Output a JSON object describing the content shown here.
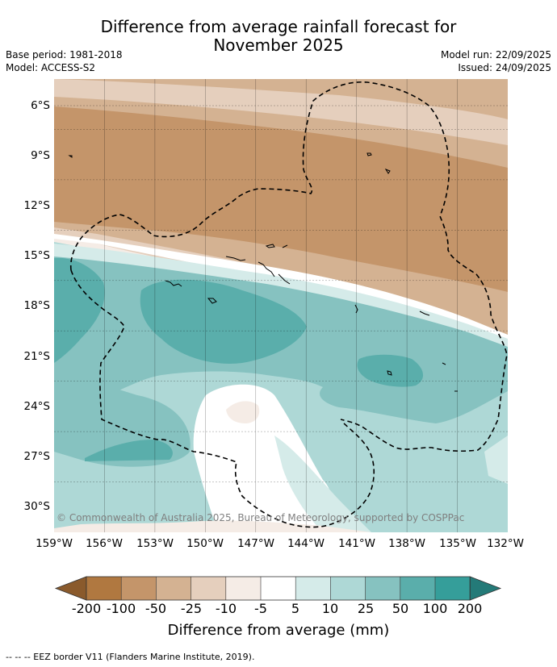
{
  "header": {
    "title_line1": "Difference from average rainfall forecast for",
    "title_line2": "November 2025",
    "base_period": "Base period: 1981-2018",
    "model": "Model: ACCESS-S2",
    "model_run": "Model run: 22/09/2025",
    "issued": "Issued: 24/09/2025"
  },
  "map": {
    "copyright": "© Commonwealth of Australia 2025, Bureau of Meteorology, supported by COSPPac",
    "colors": {
      "c_200": "#8a5a2c",
      "c_100": "#b07840",
      "c_50": "#c4956a",
      "c_25": "#d4b292",
      "c_10": "#e5cfbd",
      "c_5": "#f5ece6",
      "c_0": "#ffffff",
      "p_5": "#d5ebe9",
      "p_10": "#aed8d6",
      "p_25": "#86c2c0",
      "p_50": "#5aaeab",
      "p_100": "#359e9a",
      "p_200": "#247a78"
    }
  },
  "footer": {
    "eez_legend": "--  --  -- EEZ border V11 (Flanders Marine Institute, 2019)."
  },
  "chart_data": {
    "type": "heatmap",
    "title": "Difference from average rainfall forecast for November 2025",
    "xlabel": "",
    "ylabel": "",
    "x_ticks": [
      "159°W",
      "156°W",
      "153°W",
      "150°W",
      "147°W",
      "144°W",
      "141°W",
      "138°W",
      "135°W",
      "132°W"
    ],
    "x_values": [
      -159,
      -156,
      -153,
      -150,
      -147,
      -144,
      -141,
      -138,
      -135,
      -132
    ],
    "y_ticks": [
      "6°S",
      "9°S",
      "12°S",
      "15°S",
      "18°S",
      "21°S",
      "24°S",
      "27°S",
      "30°S"
    ],
    "y_values": [
      -6,
      -9,
      -12,
      -15,
      -18,
      -21,
      -24,
      -27,
      -30
    ],
    "xlim": [
      -159,
      -132
    ],
    "ylim": [
      -31.5,
      -4.5
    ],
    "colorbar": {
      "label": "Difference from average (mm)",
      "tick_labels": [
        "-200",
        "-100",
        "-50",
        "-25",
        "-10",
        "-5",
        "5",
        "10",
        "25",
        "50",
        "100",
        "200"
      ],
      "bins": [
        {
          "range": "< -200",
          "color": "#8a5a2c"
        },
        {
          "range": "-200 to -100",
          "color": "#b07840"
        },
        {
          "range": "-100 to -50",
          "color": "#c4956a"
        },
        {
          "range": "-50 to -25",
          "color": "#d4b292"
        },
        {
          "range": "-25 to -10",
          "color": "#e5cfbd"
        },
        {
          "range": "-10 to -5",
          "color": "#f5ece6"
        },
        {
          "range": "-5 to 5",
          "color": "#ffffff"
        },
        {
          "range": "5 to 10",
          "color": "#d5ebe9"
        },
        {
          "range": "10 to 25",
          "color": "#aed8d6"
        },
        {
          "range": "25 to 50",
          "color": "#86c2c0"
        },
        {
          "range": "50 to 100",
          "color": "#5aaeab"
        },
        {
          "range": "100 to 200",
          "color": "#359e9a"
        },
        {
          "range": "> 200",
          "color": "#247a78"
        }
      ]
    }
  }
}
